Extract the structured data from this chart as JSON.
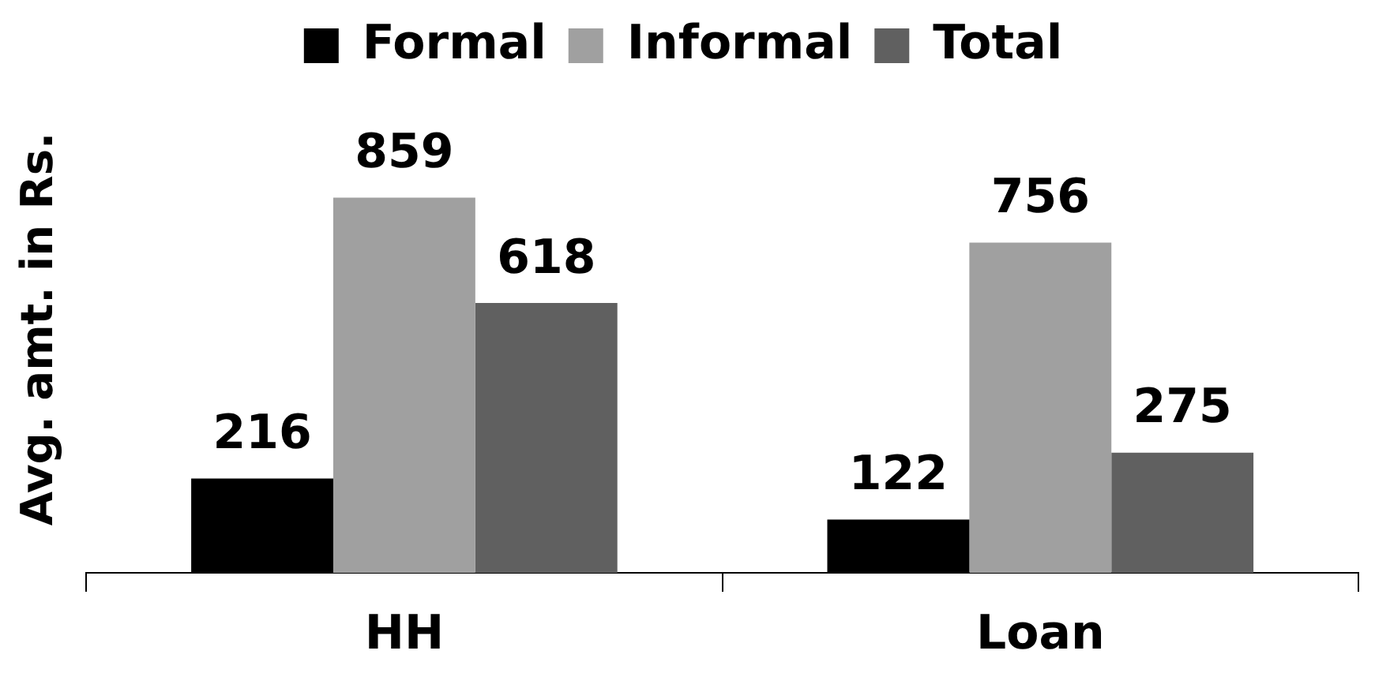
{
  "chart_data": {
    "type": "bar",
    "ylabel": "Avg. amt. in Rs.",
    "categories": [
      "HH",
      "Loan"
    ],
    "series": [
      {
        "name": "Formal",
        "color": "#000000",
        "values": [
          216,
          122
        ]
      },
      {
        "name": "Informal",
        "color": "#a0a0a0",
        "values": [
          859,
          756
        ]
      },
      {
        "name": "Total",
        "color": "#606060",
        "values": [
          618,
          275
        ]
      }
    ],
    "data_labels": true,
    "legend": "top",
    "grid": false
  }
}
